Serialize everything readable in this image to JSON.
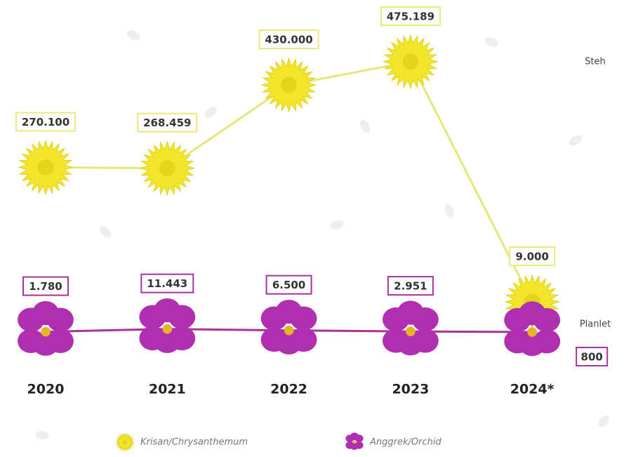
{
  "chart_data": {
    "type": "line",
    "categories": [
      "2020",
      "2021",
      "2022",
      "2023",
      "2024*"
    ],
    "series": [
      {
        "name": "Krisan/Chrysanthemum",
        "color": "#f2e52a",
        "line_color": "#e6e67a",
        "unit": "Steh",
        "values": [
          270100,
          268459,
          430000,
          475189,
          9000
        ],
        "value_labels": [
          "270.100",
          "268.459",
          "430.000",
          "475.189",
          "9.000"
        ]
      },
      {
        "name": "Anggrek/Orchid",
        "color": "#b02fb0",
        "line_color": "#a8329f",
        "unit": "Planlet",
        "axis": "y2",
        "values": [
          1780,
          11443,
          6500,
          2951,
          800
        ],
        "value_labels": [
          "1.780",
          "11.443",
          "6.500",
          "2.951",
          "800"
        ]
      }
    ],
    "ylim": [
      -50000,
      500000
    ],
    "y2lim": [
      0,
      1000000
    ]
  }
}
